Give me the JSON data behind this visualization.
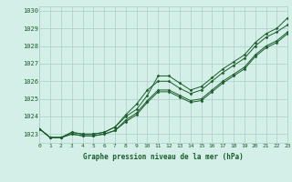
{
  "title": "Graphe pression niveau de la mer (hPa)",
  "background_color": "#d4efe8",
  "grid_color": "#aacfc4",
  "line_color": "#1a5c2a",
  "x_min": 0,
  "x_max": 23,
  "y_min": 1022.5,
  "y_max": 1030.25,
  "yticks": [
    1023,
    1024,
    1025,
    1026,
    1027,
    1028,
    1029,
    1030
  ],
  "xticks": [
    0,
    1,
    2,
    3,
    4,
    5,
    6,
    7,
    8,
    9,
    10,
    11,
    12,
    13,
    14,
    15,
    16,
    17,
    18,
    19,
    20,
    21,
    22,
    23
  ],
  "series": [
    [
      1023.3,
      1022.8,
      1022.8,
      1023.1,
      1023.0,
      1023.0,
      1023.1,
      1023.4,
      1024.0,
      1024.4,
      1025.2,
      1026.3,
      1026.3,
      1025.9,
      1025.5,
      1025.7,
      1026.2,
      1026.7,
      1027.1,
      1027.5,
      1028.2,
      1028.7,
      1029.0,
      1029.6
    ],
    [
      1023.3,
      1022.8,
      1022.8,
      1023.1,
      1023.0,
      1023.0,
      1023.1,
      1023.4,
      1024.1,
      1024.7,
      1025.5,
      1026.0,
      1026.0,
      1025.6,
      1025.3,
      1025.5,
      1026.0,
      1026.5,
      1026.9,
      1027.3,
      1028.0,
      1028.5,
      1028.8,
      1029.2
    ],
    [
      1023.3,
      1022.8,
      1022.8,
      1023.0,
      1022.9,
      1022.9,
      1023.0,
      1023.2,
      1023.8,
      1024.2,
      1024.9,
      1025.5,
      1025.5,
      1025.2,
      1024.9,
      1025.0,
      1025.5,
      1026.0,
      1026.4,
      1026.8,
      1027.5,
      1028.0,
      1028.3,
      1028.8
    ],
    [
      1023.3,
      1022.8,
      1022.8,
      1023.0,
      1022.9,
      1022.9,
      1023.0,
      1023.2,
      1023.7,
      1024.1,
      1024.8,
      1025.4,
      1025.4,
      1025.1,
      1024.8,
      1024.9,
      1025.4,
      1025.9,
      1026.3,
      1026.7,
      1027.4,
      1027.9,
      1028.2,
      1028.7
    ]
  ]
}
